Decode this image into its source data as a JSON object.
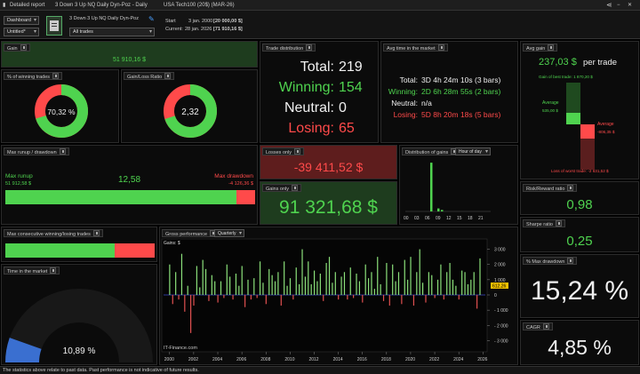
{
  "titlebar": {
    "app": "Detailed report",
    "strategy": "3 Down 3 Up NQ Daily Dyn-Poz - Daily",
    "instrument": "USA Tech100 (20$) (MAR-26)"
  },
  "toolbar": {
    "layout_select": "Dashboard",
    "sublayout_select": "Untitled*",
    "strategy_name": "3 Down 3 Up NQ Daily Dyn-Poz",
    "trades_select": "All trades",
    "start_label": "Start",
    "start_value": "3 jan. 2000",
    "start_amount": "[20 000,00 $]",
    "current_label": "Current:",
    "current_value": "28 jan. 2026",
    "current_amount": "[71 910,16 $]"
  },
  "gain": {
    "title": "Gain",
    "value": "51 910,16 $"
  },
  "trade_distribution": {
    "title": "Trade distribution",
    "total_label": "Total:",
    "total": "219",
    "winning_label": "Winning:",
    "winning": "154",
    "neutral_label": "Neutral:",
    "neutral": "0",
    "losing_label": "Losing:",
    "losing": "65"
  },
  "avg_time": {
    "title": "Avg time in the market",
    "total_label": "Total:",
    "total": "3D 4h 24m 10s (3 bars)",
    "winning_label": "Winning:",
    "winning": "2D 6h 28m 55s (2 bars)",
    "neutral_label": "Neutral:",
    "neutral": "n/a",
    "losing_label": "Losing:",
    "losing": "5D 8h 20m 18s (5 bars)"
  },
  "avg_gain": {
    "title": "Avg gain",
    "value": "237,03 $",
    "unit": "per trade",
    "best_label": "Gain of best trade: 1 870,20 $",
    "avg_label": "Average",
    "avg_value": "535,00 $",
    "avg_loss_label": "Average",
    "avg_loss_value": "-806,35 $",
    "worst_label": "Loss of worst trade: -2 631,52 $",
    "best_frac": 1.0,
    "avg_win_frac": 0.286,
    "avg_loss_frac": 0.306,
    "worst_frac": 1.0
  },
  "win_pct": {
    "title": "% of winning trades",
    "value": "70,32 %",
    "fraction": 0.7032
  },
  "gain_loss": {
    "title": "Gain/Loss Ratio",
    "value": "2,32",
    "fraction": 0.7
  },
  "runup": {
    "title": "Max runup / drawdown",
    "ratio": "12,58",
    "runup_label": "Max runup",
    "runup_value": "51 912,58 $",
    "drawdown_label": "Max drawdown",
    "drawdown_value": "-4 126,36 $",
    "runup_fraction": 0.926
  },
  "losses_only": {
    "title": "Losses only",
    "value": "-39 411,52 $"
  },
  "gains_only": {
    "title": "Gains only",
    "value": "91 321,68 $"
  },
  "dist_gains": {
    "title": "Distribution of gains",
    "mode": "Hour of day",
    "ticks": [
      "00",
      "03",
      "06",
      "09",
      "12",
      "15",
      "18",
      "21"
    ],
    "bars": [
      {
        "hour": 7,
        "value": 0.98
      },
      {
        "hour": 9,
        "value": 0.06
      },
      {
        "hour": 10,
        "value": 0.03
      }
    ]
  },
  "consecutive": {
    "title": "Max consecutive winning/losing trades",
    "win_fraction": 0.73
  },
  "time_market": {
    "title": "Time in the market",
    "value": "10,89 %",
    "fraction": 0.1089
  },
  "gross": {
    "title": "Gross performance",
    "period": "Quarterly",
    "legend": "Gains: $",
    "watermark": "IT-Finance.com",
    "current_label": "612,26"
  },
  "risk_reward": {
    "title": "Risk/Reward ratio",
    "value": "0,98"
  },
  "sharpe": {
    "title": "Sharpe ratio",
    "value": "0,25"
  },
  "max_dd": {
    "title": "% Max drawdown",
    "value": "15,24 %"
  },
  "cagr": {
    "title": "CAGR",
    "value": "4,85 %"
  },
  "footer": {
    "text": "The statistics above relate to past data. Past performance is not indicative of future results."
  },
  "chart_data": {
    "type": "bar",
    "title": "Gross performance",
    "ylabel": "Gains: $",
    "ylim": [
      -3500,
      3500
    ],
    "y_ticks": [
      3000,
      2000,
      1000,
      0,
      -1000,
      -2000,
      -3000
    ],
    "y_tick_labels": [
      "3 000",
      "2 000",
      "1 000",
      "0",
      "- 1 000",
      "- 2 000",
      "- 3 000"
    ],
    "x_range": [
      1999.5,
      2026.2
    ],
    "x_ticks": [
      2000,
      2002,
      2004,
      2006,
      2008,
      2010,
      2012,
      2014,
      2016,
      2018,
      2020,
      2022,
      2024,
      2026
    ],
    "x": [
      2000.0,
      2000.25,
      2000.5,
      2000.75,
      2001.0,
      2001.25,
      2001.5,
      2001.75,
      2002.0,
      2002.25,
      2002.5,
      2002.75,
      2003.0,
      2003.25,
      2003.5,
      2003.75,
      2004.0,
      2004.25,
      2004.5,
      2004.75,
      2005.0,
      2005.25,
      2005.5,
      2005.75,
      2006.0,
      2006.25,
      2006.5,
      2006.75,
      2007.0,
      2007.25,
      2007.5,
      2007.75,
      2008.0,
      2008.25,
      2008.5,
      2008.75,
      2009.0,
      2009.25,
      2009.5,
      2009.75,
      2010.0,
      2010.25,
      2010.5,
      2010.75,
      2011.0,
      2011.25,
      2011.5,
      2011.75,
      2012.0,
      2012.25,
      2012.5,
      2012.75,
      2013.0,
      2013.25,
      2013.5,
      2013.75,
      2014.0,
      2014.25,
      2014.5,
      2014.75,
      2015.0,
      2015.25,
      2015.5,
      2015.75,
      2016.0,
      2016.25,
      2016.5,
      2016.75,
      2017.0,
      2017.25,
      2017.5,
      2017.75,
      2018.0,
      2018.25,
      2018.5,
      2018.75,
      2019.0,
      2019.25,
      2019.5,
      2019.75,
      2020.0,
      2020.25,
      2020.5,
      2020.75,
      2021.0,
      2021.25,
      2021.5,
      2021.75,
      2022.0,
      2022.25,
      2022.5,
      2022.75,
      2023.0,
      2023.25,
      2023.5,
      2023.75,
      2024.0,
      2024.25,
      2024.5,
      2024.75,
      2025.0,
      2025.25,
      2025.5,
      2025.75
    ],
    "values": [
      2000,
      -600,
      1500,
      -300,
      2700,
      -1100,
      600,
      -2500,
      -700,
      1900,
      500,
      2300,
      1700,
      -400,
      1300,
      900,
      -500,
      900,
      -200,
      2000,
      1200,
      -300,
      1400,
      600,
      1900,
      -800,
      1000,
      -300,
      1100,
      -200,
      2200,
      800,
      -600,
      1700,
      1300,
      900,
      1500,
      -700,
      2200,
      600,
      1100,
      -300,
      1800,
      700,
      3000,
      1200,
      2200,
      700,
      1600,
      900,
      1400,
      -400,
      2100,
      2500,
      800,
      1500,
      -300,
      1200,
      1500,
      -300,
      1800,
      -200,
      1400,
      900,
      -500,
      2000,
      1100,
      1500,
      400,
      2500,
      700,
      -400,
      2100,
      -700,
      2000,
      900,
      1500,
      -600,
      2300,
      1000,
      2500,
      -700,
      1500,
      3000,
      800,
      -500,
      1500,
      1300,
      -200,
      1000,
      2000,
      -300,
      1500,
      2100,
      1000,
      600,
      -300,
      1600,
      1500,
      700,
      1000,
      1500,
      -900,
      2400
    ]
  }
}
